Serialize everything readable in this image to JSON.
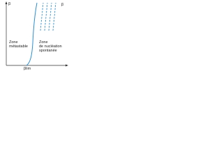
{
  "axes": {
    "y_label": "β",
    "x_label": "β",
    "x_mark": "βlim"
  },
  "zones": [
    {
      "label_line1": "Zone",
      "label_line2": "métastable"
    },
    {
      "label_line1": "Zone",
      "label_line2": "de nucléation",
      "label_line3": "spontanée"
    }
  ]
}
